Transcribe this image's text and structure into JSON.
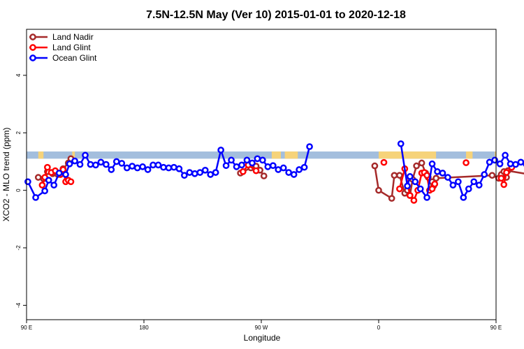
{
  "chart_data": {
    "type": "line",
    "title": "7.5N-12.5N May (Ver 10)   2015-01-01 to 2020-12-18",
    "xlabel": "Longitude",
    "ylabel": "XCO2 - MLO trend (ppm)",
    "xlim": [
      90,
      450
    ],
    "ylim": [
      -4.5,
      5.6
    ],
    "x_ticks": [
      {
        "value": 90,
        "label": "90 E"
      },
      {
        "value": 180,
        "label": "180"
      },
      {
        "value": 270,
        "label": "90 W"
      },
      {
        "value": 360,
        "label": "0"
      },
      {
        "value": 450,
        "label": "90 E"
      },
      {
        "value": 540,
        "label": "180"
      }
    ],
    "y_ticks": [
      {
        "value": -4,
        "label": "-4"
      },
      {
        "value": -2,
        "label": "-2"
      },
      {
        "value": 0,
        "label": "0"
      },
      {
        "value": 2,
        "label": "2"
      },
      {
        "value": 4,
        "label": "4"
      }
    ],
    "legend_position": "top-left",
    "band": {
      "y0": 1.1,
      "y1": 1.35,
      "color": "#a3bedd",
      "land_color": "#f6d37a"
    },
    "land_segments": [
      [
        99,
        103
      ],
      [
        125,
        127
      ],
      [
        278,
        285
      ],
      [
        288,
        298
      ],
      [
        360,
        404
      ],
      [
        427,
        432
      ],
      [
        449,
        455
      ],
      [
        480,
        485
      ]
    ],
    "series": [
      {
        "name": "Land Nadir",
        "color": "#a52a2a",
        "points": [
          [
            99,
            0.45
          ],
          [
            103,
            0.4
          ],
          [
            106,
            0.65
          ],
          [
            110,
            0.58
          ],
          [
            114,
            0.55
          ],
          [
            118,
            0.75
          ],
          [
            122,
            0.95
          ],
          [
            124,
            1.1
          ],
          [
            254,
            0.6
          ],
          [
            262,
            0.78
          ],
          [
            266,
            0.84
          ],
          [
            269,
            0.7
          ],
          [
            272,
            0.5
          ],
          [
            357,
            0.85
          ],
          [
            360,
            0.0
          ],
          [
            370,
            -0.28
          ],
          [
            372,
            0.52
          ],
          [
            376,
            0.52
          ],
          [
            380,
            -0.1
          ],
          [
            382,
            0.0
          ],
          [
            384,
            -0.18
          ],
          [
            386,
            0.38
          ],
          [
            389,
            0.85
          ],
          [
            393,
            0.95
          ],
          [
            396,
            0.6
          ],
          [
            398,
            0.45
          ],
          [
            401,
            0.3
          ],
          [
            402,
            0.15
          ],
          [
            404,
            0.42
          ],
          [
            447,
            0.52
          ],
          [
            452,
            0.42
          ],
          [
            454,
            0.55
          ],
          [
            456,
            0.65
          ],
          [
            458,
            0.45
          ],
          [
            459,
            0.68
          ],
          [
            476,
            0.55
          ],
          [
            478,
            0.7
          ],
          [
            480,
            1.1
          ]
        ],
        "breaks": [
          8,
          13,
          28,
          33
        ]
      },
      {
        "name": "Land Glint",
        "color": "#ff0000",
        "points": [
          [
            102,
            0.18
          ],
          [
            104,
            0.45
          ],
          [
            106,
            0.8
          ],
          [
            109,
            0.62
          ],
          [
            112,
            0.68
          ],
          [
            116,
            0.55
          ],
          [
            118,
            0.72
          ],
          [
            120,
            0.3
          ],
          [
            122,
            0.35
          ],
          [
            124,
            0.3
          ],
          [
            256,
            0.65
          ],
          [
            260,
            0.88
          ],
          [
            266,
            0.68
          ],
          [
            364,
            0.97
          ],
          [
            376,
            0.05
          ],
          [
            380,
            0.75
          ],
          [
            384,
            -0.18
          ],
          [
            387,
            -0.35
          ],
          [
            390,
            0.0
          ],
          [
            393,
            0.6
          ],
          [
            395,
            0.62
          ],
          [
            397,
            0.52
          ],
          [
            399,
            0.0
          ],
          [
            401,
            0.05
          ],
          [
            403,
            0.22
          ],
          [
            427,
            0.96
          ],
          [
            454,
            0.42
          ],
          [
            456,
            0.2
          ],
          [
            458,
            0.62
          ],
          [
            462,
            0.8
          ],
          [
            474,
            0.5
          ],
          [
            477,
            0.8
          ],
          [
            478,
            0.3
          ],
          [
            482,
            0.35
          ]
        ],
        "breaks": [
          10,
          13,
          14,
          25,
          26,
          30
        ]
      },
      {
        "name": "Ocean Glint",
        "color": "#0000ff",
        "points": [
          [
            91,
            0.3
          ],
          [
            97,
            -0.25
          ],
          [
            104,
            -0.02
          ],
          [
            107,
            0.35
          ],
          [
            111,
            0.18
          ],
          [
            115,
            0.6
          ],
          [
            120,
            0.55
          ],
          [
            123,
            0.92
          ],
          [
            127,
            1.02
          ],
          [
            131,
            0.9
          ],
          [
            135,
            1.22
          ],
          [
            139,
            0.9
          ],
          [
            143,
            0.88
          ],
          [
            147,
            0.98
          ],
          [
            151,
            0.9
          ],
          [
            155,
            0.72
          ],
          [
            159,
            1.0
          ],
          [
            163,
            0.94
          ],
          [
            167,
            0.78
          ],
          [
            171,
            0.84
          ],
          [
            175,
            0.78
          ],
          [
            179,
            0.82
          ],
          [
            183,
            0.72
          ],
          [
            187,
            0.88
          ],
          [
            191,
            0.88
          ],
          [
            195,
            0.8
          ],
          [
            199,
            0.78
          ],
          [
            203,
            0.8
          ],
          [
            207,
            0.75
          ],
          [
            211,
            0.52
          ],
          [
            215,
            0.62
          ],
          [
            219,
            0.58
          ],
          [
            223,
            0.62
          ],
          [
            227,
            0.7
          ],
          [
            231,
            0.55
          ],
          [
            235,
            0.62
          ],
          [
            239,
            1.4
          ],
          [
            243,
            0.86
          ],
          [
            247,
            1.05
          ],
          [
            251,
            0.82
          ],
          [
            255,
            0.88
          ],
          [
            259,
            1.05
          ],
          [
            263,
            0.95
          ],
          [
            267,
            1.1
          ],
          [
            271,
            1.05
          ],
          [
            275,
            0.82
          ],
          [
            279,
            0.86
          ],
          [
            283,
            0.72
          ],
          [
            287,
            0.78
          ],
          [
            291,
            0.62
          ],
          [
            295,
            0.55
          ],
          [
            299,
            0.72
          ],
          [
            303,
            0.8
          ],
          [
            307,
            1.52
          ],
          [
            377,
            1.62
          ],
          [
            382,
            0.15
          ],
          [
            384,
            0.48
          ],
          [
            388,
            0.3
          ],
          [
            392,
            0.05
          ],
          [
            397,
            -0.25
          ],
          [
            401,
            0.92
          ],
          [
            405,
            0.65
          ],
          [
            409,
            0.6
          ],
          [
            413,
            0.45
          ],
          [
            417,
            0.18
          ],
          [
            421,
            0.3
          ],
          [
            425,
            -0.25
          ],
          [
            429,
            0.05
          ],
          [
            433,
            0.3
          ],
          [
            437,
            0.18
          ],
          [
            441,
            0.55
          ],
          [
            445,
            0.98
          ],
          [
            449,
            1.05
          ],
          [
            453,
            0.92
          ],
          [
            457,
            1.22
          ],
          [
            461,
            0.92
          ],
          [
            465,
            0.9
          ],
          [
            469,
            0.98
          ],
          [
            473,
            0.92
          ],
          [
            477,
            0.72
          ],
          [
            481,
            1.0
          ],
          [
            485,
            0.95
          ]
        ],
        "breaks": [
          54
        ]
      }
    ]
  }
}
